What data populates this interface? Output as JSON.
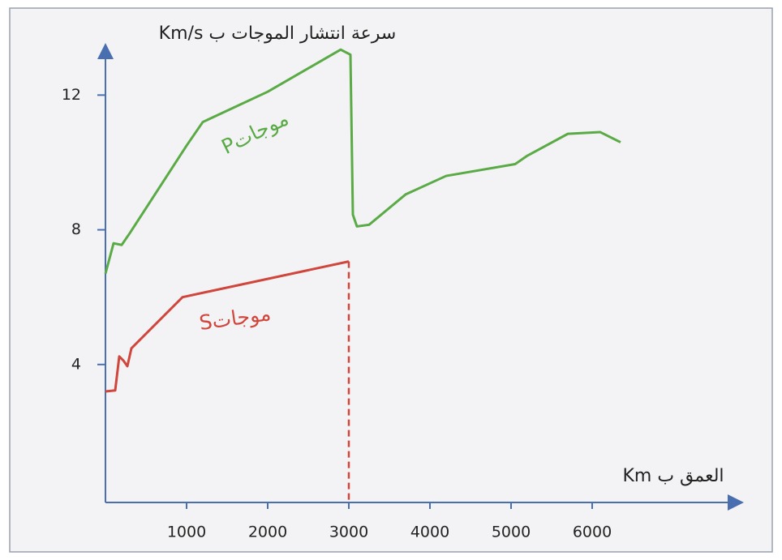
{
  "chart_data": {
    "type": "line",
    "y_label": "سرعة  انتشار الموجات  ب Km/s",
    "x_label": "العمق ب Km",
    "xlim": [
      0,
      7850
    ],
    "xticks": [
      1000,
      2000,
      3000,
      4000,
      5000,
      6000
    ],
    "ylim": [
      0,
      13.5
    ],
    "yticks": [
      4,
      8,
      12
    ],
    "series": [
      {
        "name": "موجاتP",
        "color": "#5aaa46",
        "x": [
          0,
          100,
          200,
          300,
          1000,
          1200,
          2000,
          2900,
          3020,
          3050,
          3100,
          3250,
          3700,
          4200,
          5050,
          5200,
          5700,
          6100,
          6350
        ],
        "values": [
          6.7,
          7.6,
          7.55,
          7.9,
          10.5,
          11.2,
          12.1,
          13.35,
          13.2,
          8.45,
          8.1,
          8.15,
          9.05,
          9.6,
          9.95,
          10.2,
          10.85,
          10.9,
          10.6
        ]
      },
      {
        "name": "موجاتS",
        "color": "#d0463c",
        "x": [
          0,
          120,
          170,
          220,
          270,
          320,
          950,
          3000
        ],
        "values": [
          3.2,
          3.23,
          4.24,
          4.12,
          3.95,
          4.48,
          6.0,
          7.06
        ]
      }
    ]
  }
}
